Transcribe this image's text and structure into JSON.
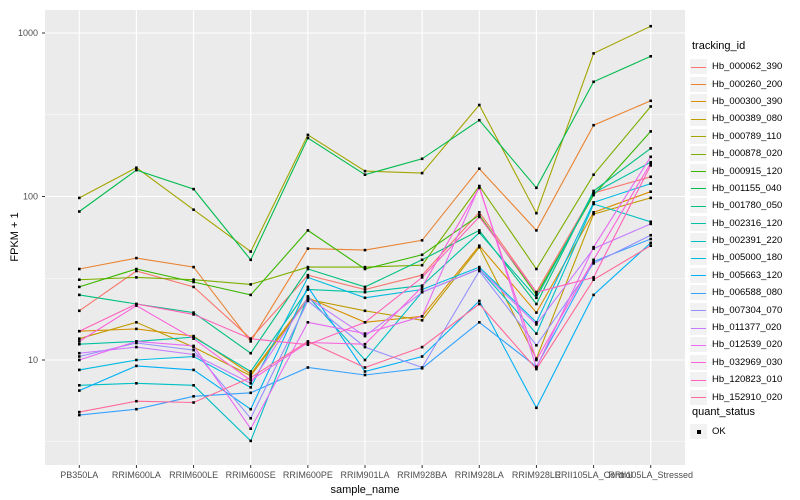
{
  "chart_data": {
    "type": "line",
    "xlabel": "sample_name",
    "ylabel": "FPKM + 1",
    "y_scale": "log10",
    "y_ticks": [
      10,
      100,
      1000
    ],
    "y_minor_ticks": [
      3.162,
      31.62,
      316.2
    ],
    "ylim": [
      2.3,
      1300
    ],
    "grid": "on",
    "legend_position": "right",
    "point_color": "#000000",
    "categories": [
      "PB350LA",
      "RRIM600LA",
      "RRIM600LE",
      "RRIM600SE",
      "RRIM600PE",
      "RRIM901LA",
      "RRIM928BA",
      "RRIM928LA",
      "RRIM928LE",
      "RRII105LA_Control",
      "RRII105LA_Stressed"
    ],
    "series": [
      {
        "name": "Hb_000062_390",
        "color": "#F8766D",
        "values": [
          20,
          35,
          28,
          13.5,
          33,
          27,
          33,
          80,
          26,
          105,
          132
        ]
      },
      {
        "name": "Hb_000260_200",
        "color": "#EA8331",
        "values": [
          36,
          42,
          37,
          13,
          48,
          47,
          54,
          148,
          62,
          273,
          385
        ]
      },
      {
        "name": "Hb_000300_390",
        "color": "#D89000",
        "values": [
          15,
          15.5,
          14,
          8.2,
          24,
          17,
          18.5,
          50,
          19.5,
          80,
          107
        ]
      },
      {
        "name": "Hb_000389_080",
        "color": "#C09B00",
        "values": [
          13.5,
          17,
          12,
          8.0,
          23.5,
          20,
          17.5,
          49,
          10.2,
          78,
          98
        ]
      },
      {
        "name": "Hb_000789_110",
        "color": "#A3A500",
        "values": [
          98,
          150,
          83,
          46,
          238,
          143,
          139,
          363,
          79,
          750,
          1100
        ]
      },
      {
        "name": "Hb_000878_020",
        "color": "#7CAE00",
        "values": [
          31,
          32,
          31,
          29,
          37,
          37,
          38,
          116,
          36,
          136,
          355
        ]
      },
      {
        "name": "Hb_000915_120",
        "color": "#39B600",
        "values": [
          28,
          36,
          30,
          25,
          62,
          36,
          44,
          77,
          25,
          102,
          250
        ]
      },
      {
        "name": "Hb_001155_040",
        "color": "#00BB4E",
        "values": [
          81,
          145,
          111,
          41,
          228,
          136,
          170,
          293,
          113,
          503,
          720
        ]
      },
      {
        "name": "Hb_001780_050",
        "color": "#00BF7D",
        "values": [
          25,
          22,
          19.5,
          11,
          36,
          28,
          41,
          62,
          22,
          108,
          197
        ]
      },
      {
        "name": "Hb_002316_120",
        "color": "#00C1A3",
        "values": [
          12.5,
          13,
          13.8,
          8.5,
          27,
          26,
          28.5,
          60,
          24,
          105,
          162
        ]
      },
      {
        "name": "Hb_002391_220",
        "color": "#00BFC4",
        "values": [
          7.0,
          7.2,
          7.0,
          3.2,
          24.5,
          10,
          26,
          36,
          14.5,
          90,
          70
        ]
      },
      {
        "name": "Hb_005000_180",
        "color": "#00BAE0",
        "values": [
          8.7,
          10,
          10.5,
          6.8,
          32,
          24,
          27,
          37,
          17,
          92,
          120
        ]
      },
      {
        "name": "Hb_005663_120",
        "color": "#00B0F6",
        "values": [
          6.5,
          9.2,
          8.7,
          5.0,
          28,
          8.5,
          10.5,
          23,
          5.1,
          25,
          52
        ]
      },
      {
        "name": "Hb_006588_080",
        "color": "#35A2FF",
        "values": [
          4.6,
          5.0,
          6.0,
          6.3,
          9,
          8.1,
          8.9,
          17,
          9.1,
          40,
          55
        ]
      },
      {
        "name": "Hb_007304_070",
        "color": "#9590FF",
        "values": [
          10.5,
          12.7,
          11.5,
          4.4,
          23,
          12,
          9.0,
          35,
          12.3,
          39,
          58
        ]
      },
      {
        "name": "Hb_011377_020",
        "color": "#C77CFF",
        "values": [
          11,
          12,
          10.8,
          7.2,
          24,
          14,
          26,
          36,
          16.5,
          48,
          68
        ]
      },
      {
        "name": "Hb_012539_020",
        "color": "#E76BF3",
        "values": [
          10,
          13,
          12.2,
          3.8,
          17,
          14.5,
          18.5,
          115,
          9.0,
          49,
          175
        ]
      },
      {
        "name": "Hb_032969_030",
        "color": "#FA62DB",
        "values": [
          13,
          21.5,
          13.5,
          7.5,
          12.8,
          12.5,
          28,
          113,
          10,
          41,
          160
        ]
      },
      {
        "name": "Hb_120823_010",
        "color": "#FF62BC",
        "values": [
          15,
          22,
          19,
          13.5,
          12.4,
          17,
          32,
          75,
          26,
          32,
          155
        ]
      },
      {
        "name": "Hb_152910_020",
        "color": "#FF6A98",
        "values": [
          4.8,
          5.6,
          5.5,
          7.8,
          13,
          9,
          12,
          22,
          8.8,
          31,
          50
        ]
      }
    ]
  },
  "legend": {
    "tracking_title": "tracking_id",
    "quant_title": "quant_status",
    "quant_value": "OK"
  },
  "colors": {
    "panel_bg": "#EBEBEB",
    "grid": "#FFFFFF",
    "tick_mark": "#333333",
    "tick_text": "#4D4D4D",
    "legend_key_bg": "#F2F2F2"
  }
}
